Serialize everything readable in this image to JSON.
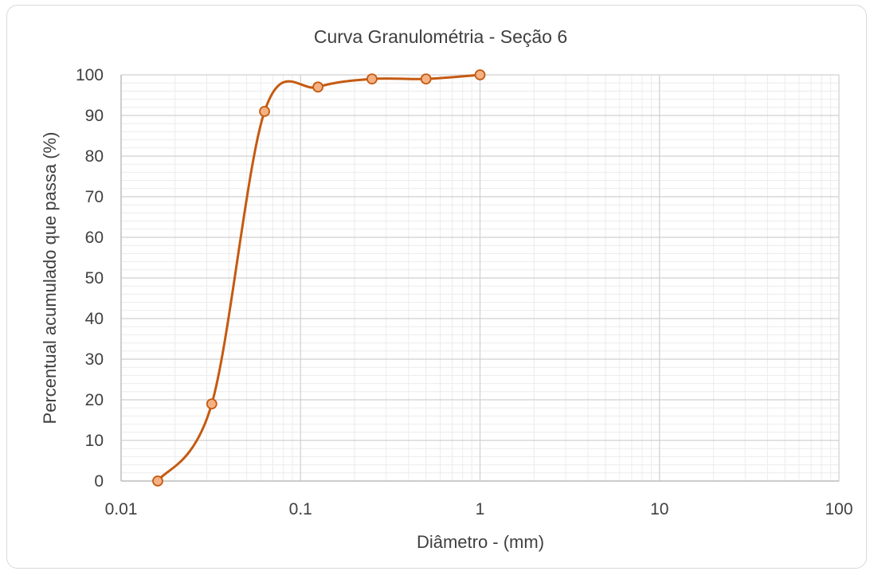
{
  "chart_data": {
    "type": "scatter",
    "title": "Curva Granulométria - Seção 6",
    "xlabel": "Diâmetro - (mm)",
    "ylabel": "Percentual acumulado que passa (%)",
    "x_scale": "log",
    "xlim": [
      0.01,
      100
    ],
    "ylim": [
      0,
      100
    ],
    "x_ticks": [
      "0.01",
      "0.1",
      "1",
      "10",
      "100"
    ],
    "y_ticks": [
      "0",
      "10",
      "20",
      "30",
      "40",
      "50",
      "60",
      "70",
      "80",
      "90",
      "100"
    ],
    "grid": true,
    "line_style": "smooth",
    "series": [
      {
        "color": "#c55a11",
        "marker_fill": "#f4b183",
        "x": [
          0.016,
          0.032,
          0.063,
          0.125,
          0.25,
          0.5,
          1
        ],
        "y": [
          0,
          19,
          91,
          97,
          99,
          99,
          100
        ]
      }
    ]
  }
}
